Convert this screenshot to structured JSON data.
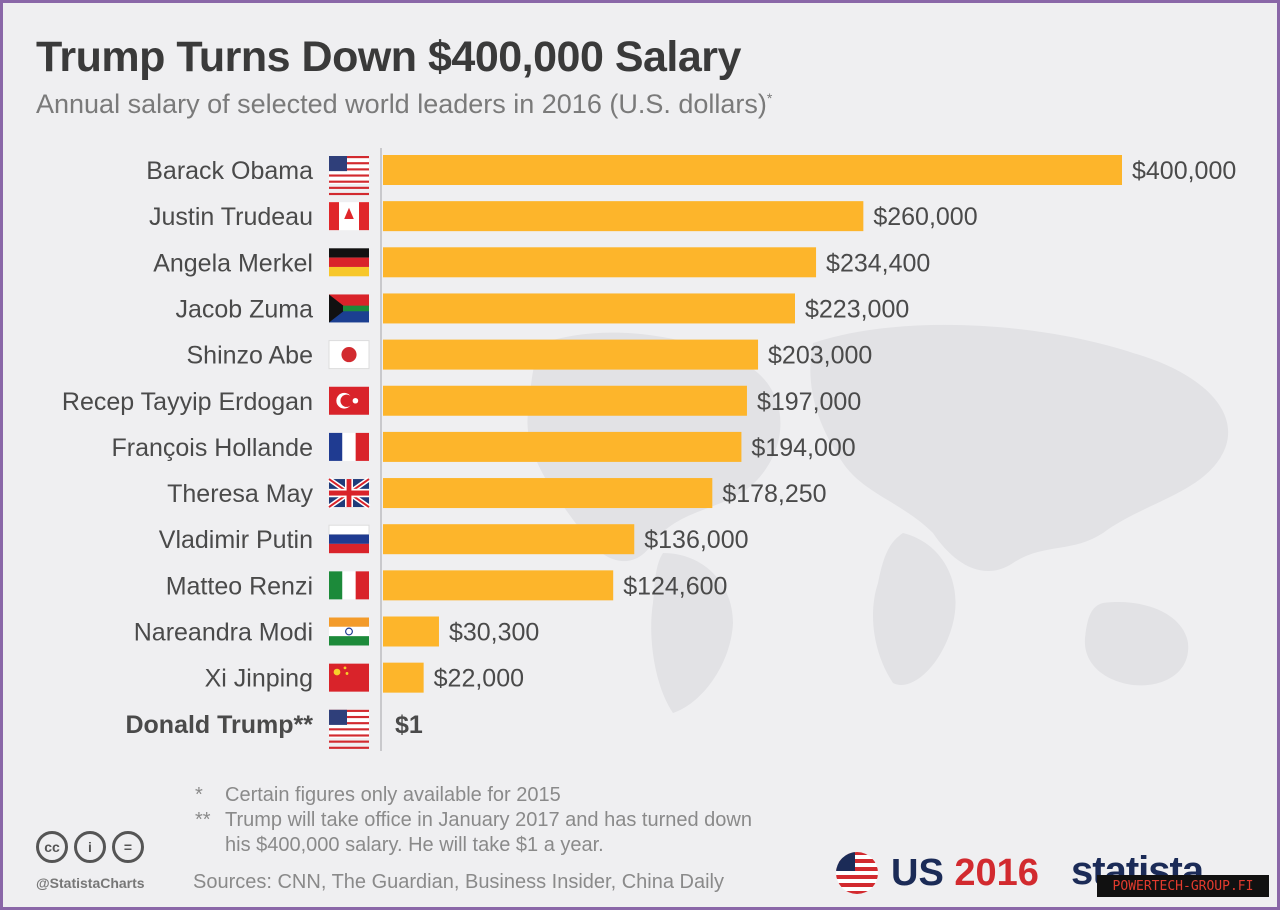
{
  "header": {
    "title": "Trump Turns Down $400,000 Salary",
    "subtitle": "Annual salary of selected world leaders in 2016 (U.S. dollars)",
    "subtitle_mark": "*"
  },
  "chart_data": {
    "type": "bar",
    "orientation": "horizontal",
    "title": "Trump Turns Down $400,000 Salary",
    "subtitle": "Annual salary of selected world leaders in 2016 (U.S. dollars)*",
    "categories": [
      "Barack Obama",
      "Justin Trudeau",
      "Angela Merkel",
      "Jacob Zuma",
      "Shinzo Abe",
      "Recep Tayyip Erdogan",
      "François Hollande",
      "Theresa May",
      "Vladimir Putin",
      "Matteo Renzi",
      "Nareandra Modi",
      "Xi Jinping",
      "Donald Trump**"
    ],
    "values": [
      400000,
      260000,
      234400,
      223000,
      203000,
      197000,
      194000,
      178250,
      136000,
      124600,
      30300,
      22000,
      1
    ],
    "value_labels": [
      "$400,000",
      "$260,000",
      "$234,400",
      "$223,000",
      "$203,000",
      "$197,000",
      "$194,000",
      "$178,250",
      "$136,000",
      "$124,600",
      "$30,300",
      "$22,000",
      "$1"
    ],
    "flags": [
      "us",
      "canada",
      "germany",
      "south-africa",
      "japan",
      "turkey",
      "france",
      "uk",
      "russia",
      "italy",
      "india",
      "china",
      "us"
    ],
    "highlight_category": "Donald Trump**",
    "xlim": [
      0,
      400000
    ],
    "bar_color": "#fdb52b"
  },
  "notes": [
    {
      "mark": "*",
      "text": "Certain figures only available for 2015"
    },
    {
      "mark": "**",
      "text": "Trump will take office in January 2017 and has turned down"
    },
    {
      "mark": "",
      "text": "his $400,000 salary. He will take $1 a year."
    }
  ],
  "sources": "Sources: CNN, The Guardian, Business Insider, China Daily",
  "footer": {
    "handle": "@StatistaCharts",
    "cc_icons": [
      "cc",
      "i",
      "="
    ],
    "us_label": "US",
    "us_year": "2016",
    "brand": "statista",
    "watermark": "POWERTECH-GROUP.FI"
  }
}
